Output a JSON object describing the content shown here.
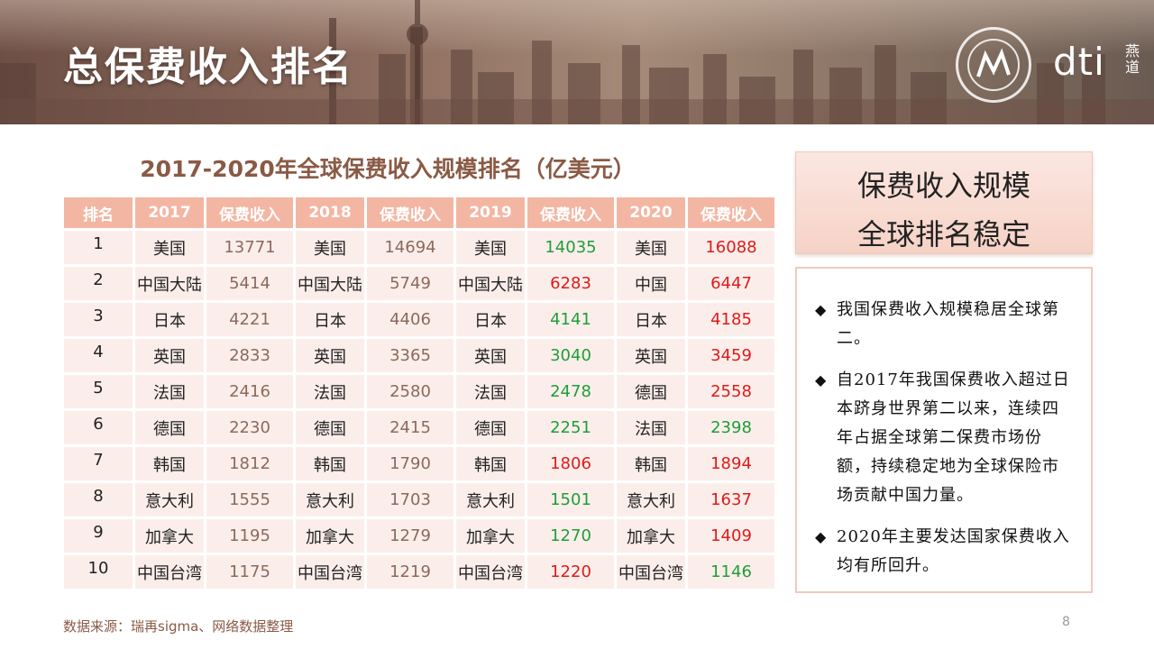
{
  "header": {
    "title": "总保费收入排名",
    "logo_text": "dti",
    "logo_sub": "燕道"
  },
  "table": {
    "title": "2017-2020年全球保费收入规模排名（亿美元）",
    "headers": [
      "排名",
      "2017",
      "保费收入",
      "2018",
      "保费收入",
      "2019",
      "保费收入",
      "2020",
      "保费收入"
    ],
    "rows": [
      {
        "rank": "1",
        "c2017": "美国",
        "v2017": "13771",
        "c2018": "美国",
        "v2018": "14694",
        "c2019": "美国",
        "v2019": "14035",
        "c2020": "美国",
        "v2020": "16088"
      },
      {
        "rank": "2",
        "c2017": "中国大陆",
        "v2017": "5414",
        "c2018": "中国大陆",
        "v2018": "5749",
        "c2019": "中国大陆",
        "v2019": "6283",
        "c2020": "中国",
        "v2020": "6447"
      },
      {
        "rank": "3",
        "c2017": "日本",
        "v2017": "4221",
        "c2018": "日本",
        "v2018": "4406",
        "c2019": "日本",
        "v2019": "4141",
        "c2020": "日本",
        "v2020": "4185"
      },
      {
        "rank": "4",
        "c2017": "英国",
        "v2017": "2833",
        "c2018": "英国",
        "v2018": "3365",
        "c2019": "英国",
        "v2019": "3040",
        "c2020": "英国",
        "v2020": "3459"
      },
      {
        "rank": "5",
        "c2017": "法国",
        "v2017": "2416",
        "c2018": "法国",
        "v2018": "2580",
        "c2019": "法国",
        "v2019": "2478",
        "c2020": "德国",
        "v2020": "2558"
      },
      {
        "rank": "6",
        "c2017": "德国",
        "v2017": "2230",
        "c2018": "德国",
        "v2018": "2415",
        "c2019": "德国",
        "v2019": "2251",
        "c2020": "法国",
        "v2020": "2398"
      },
      {
        "rank": "7",
        "c2017": "韩国",
        "v2017": "1812",
        "c2018": "韩国",
        "v2018": "1790",
        "c2019": "韩国",
        "v2019": "1806",
        "c2020": "韩国",
        "v2020": "1894"
      },
      {
        "rank": "8",
        "c2017": "意大利",
        "v2017": "1555",
        "c2018": "意大利",
        "v2018": "1703",
        "c2019": "意大利",
        "v2019": "1501",
        "c2020": "意大利",
        "v2020": "1637"
      },
      {
        "rank": "9",
        "c2017": "加拿大",
        "v2017": "1195",
        "c2018": "加拿大",
        "v2018": "1279",
        "c2019": "加拿大",
        "v2019": "1270",
        "c2020": "加拿大",
        "v2020": "1409"
      },
      {
        "rank": "10",
        "c2017": "中国台湾",
        "v2017": "1175",
        "c2018": "中国台湾",
        "v2018": "1219",
        "c2019": "中国台湾",
        "v2019": "1220",
        "c2020": "中国台湾",
        "v2020": "1146"
      }
    ],
    "colors": {
      "increase": "#e01a1a",
      "decrease": "#1e9e3a",
      "neutral": "#8b6a5c"
    },
    "v2019_trend": [
      "decrease",
      "increase",
      "decrease",
      "decrease",
      "decrease",
      "decrease",
      "increase",
      "decrease",
      "decrease",
      "increase"
    ],
    "v2020_trend": [
      "increase",
      "increase",
      "increase",
      "increase",
      "increase",
      "decrease",
      "increase",
      "increase",
      "increase",
      "decrease"
    ]
  },
  "callout": {
    "line1": "保费收入规模",
    "line2": "全球排名稳定"
  },
  "bullets": [
    "我国保费收入规模稳居全球第二。",
    "自2017年我国保费收入超过日本跻身世界第二以来，连续四年占据全球第二保费市场份额，持续稳定地为全球保险市场贡献中国力量。",
    "2020年主要发达国家保费收入均有所回升。"
  ],
  "bullet_icon": "diamond-bullet-icon",
  "footer": {
    "source": "数据来源：瑞再sigma、网络数据整理",
    "page": "8"
  }
}
